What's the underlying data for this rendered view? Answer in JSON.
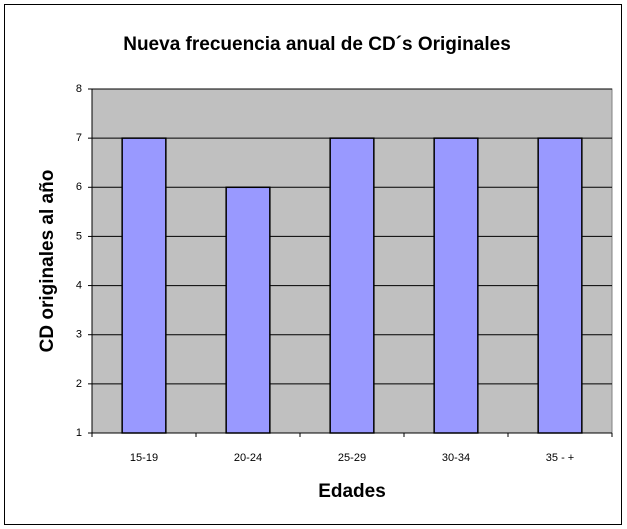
{
  "chart_data": {
    "type": "bar",
    "title": "Nueva frecuencia anual de CD´s Originales",
    "x_label": "Edades",
    "y_label": "CD originales al año",
    "categories": [
      "15-19",
      "20-24",
      "25-29",
      "30-34",
      "35 - +"
    ],
    "values": [
      7,
      6,
      7,
      7,
      7
    ],
    "color": "#9999ff",
    "ylim": [
      1,
      8
    ],
    "yticks": [
      1,
      2,
      3,
      4,
      5,
      6,
      7,
      8
    ],
    "grid": true
  }
}
